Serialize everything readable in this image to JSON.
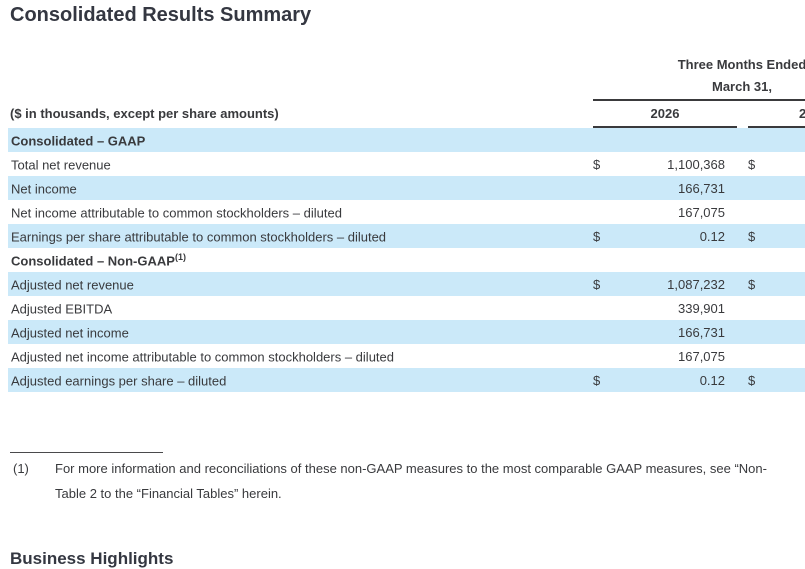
{
  "page": {
    "title": "Consolidated Results Summary"
  },
  "colors": {
    "row_shade": "#cbe9f9",
    "text": "#393a3d",
    "rule": "#3a3a3c"
  },
  "table": {
    "period_header_line1": "Three Months Ended",
    "period_header_line2": "March 31,",
    "caption": "($ in thousands, except per share amounts)",
    "col1_year": "2026",
    "col2_year_partial": "2",
    "rows": [
      {
        "type": "section",
        "label": "Consolidated – GAAP",
        "sup": "",
        "dollar1": "",
        "value": "",
        "dollar2": "",
        "shade": true
      },
      {
        "type": "data",
        "label": "Total net revenue",
        "sup": "",
        "dollar1": "$",
        "value": "1,100,368",
        "dollar2": "$",
        "shade": false
      },
      {
        "type": "data",
        "label": "Net income",
        "sup": "",
        "dollar1": "",
        "value": "166,731",
        "dollar2": "",
        "shade": true
      },
      {
        "type": "data",
        "label": "Net income attributable to common stockholders – diluted",
        "sup": "",
        "dollar1": "",
        "value": "167,075",
        "dollar2": "",
        "shade": false
      },
      {
        "type": "data",
        "label": "Earnings per share attributable to common stockholders – diluted",
        "sup": "",
        "dollar1": "$",
        "value": "0.12",
        "dollar2": "$",
        "shade": true
      },
      {
        "type": "section",
        "label": "Consolidated – Non-GAAP",
        "sup": "(1)",
        "dollar1": "",
        "value": "",
        "dollar2": "",
        "shade": false
      },
      {
        "type": "data",
        "label": "Adjusted net revenue",
        "sup": "",
        "dollar1": "$",
        "value": "1,087,232",
        "dollar2": "$",
        "shade": true
      },
      {
        "type": "data",
        "label": "Adjusted EBITDA",
        "sup": "",
        "dollar1": "",
        "value": "339,901",
        "dollar2": "",
        "shade": false
      },
      {
        "type": "data",
        "label": "Adjusted net income",
        "sup": "",
        "dollar1": "",
        "value": "166,731",
        "dollar2": "",
        "shade": true
      },
      {
        "type": "data",
        "label": "Adjusted net income attributable to common stockholders – diluted",
        "sup": "",
        "dollar1": "",
        "value": "167,075",
        "dollar2": "",
        "shade": false
      },
      {
        "type": "data",
        "label": "Adjusted earnings per share – diluted",
        "sup": "",
        "dollar1": "$",
        "value": "0.12",
        "dollar2": "$",
        "shade": true
      }
    ]
  },
  "footnote": {
    "marker": "(1)",
    "line1": "For more information and reconciliations of these non-GAAP measures to the most comparable GAAP measures, see “Non-",
    "line2": "Table 2 to the “Financial Tables” herein."
  },
  "next_section": {
    "title": "Business Highlights"
  }
}
